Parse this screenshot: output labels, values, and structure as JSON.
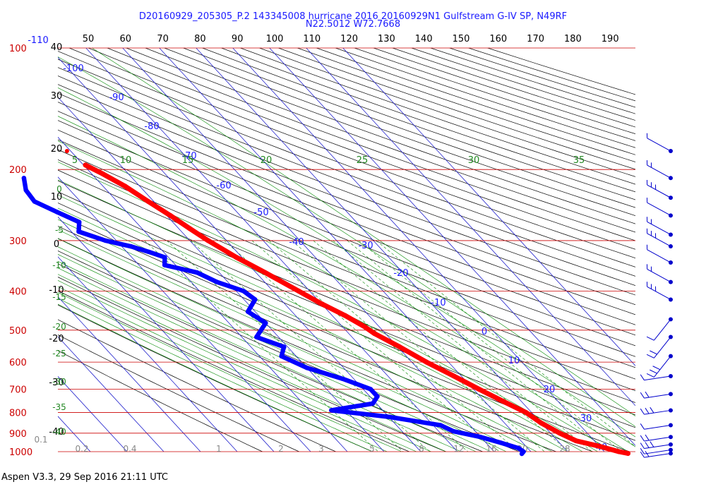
{
  "header": {
    "title_line1": "D20160929_205305_P.2 143345008 hurricane 2016 20160929N1 Gulfstream G-IV SP, N49RF",
    "title_line2": "N22.5012 W72.7668"
  },
  "footer": {
    "text": "Aspen V3.3, 29 Sep 2016  21:11 UTC"
  },
  "colors": {
    "temperature": "#ff0000",
    "dewpoint": "#0000ff",
    "isobar": "#cc0000",
    "isotherm": "#2222cc",
    "dry_adiabat": "#000000",
    "mixing_ratio": "#008800",
    "moist_adiabat": "#008800",
    "text_blue": "#1a1aff",
    "text_green": "#228822"
  },
  "chart_data": {
    "type": "skew-t",
    "title": "D20160929_205305_P.2 143345008 hurricane 2016 20160929N1 Gulfstream G-IV SP, N49RF",
    "subtitle": "N22.5012 W72.7668",
    "pressure_labels": [
      "100",
      "200",
      "300",
      "400",
      "500",
      "600",
      "700",
      "800",
      "900",
      "1000"
    ],
    "pressure_range_hpa": [
      100,
      1000
    ],
    "pressure_scale": "log",
    "top_theta_labels": [
      "40",
      "50",
      "60",
      "70",
      "80",
      "90",
      "100",
      "110",
      "120",
      "130",
      "140",
      "150",
      "160",
      "170",
      "180",
      "190"
    ],
    "left_theta_labels": [
      "30",
      "20",
      "10",
      "0",
      "-10",
      "-20",
      "-30",
      "-40"
    ],
    "isotherm_labels": [
      "-110",
      "-100",
      "-90",
      "-80",
      "-70",
      "-60",
      "-50",
      "-40",
      "-30",
      "-20",
      "-10",
      "0",
      "10",
      "20",
      "30",
      "40"
    ],
    "moist_adiabat_labels": [
      "5",
      "10",
      "15",
      "20",
      "25",
      "30",
      "35"
    ],
    "left_moist_labels": [
      "0",
      "-5",
      "-10",
      "-15",
      "-20",
      "-25",
      "-30",
      "-35",
      "-40"
    ],
    "mixing_ratio_labels": [
      "0.1",
      "0.2",
      "0.4",
      "1",
      "2",
      "3",
      "5",
      "8",
      "12",
      "16",
      "20",
      "28"
    ],
    "temperature_profile": [
      {
        "p": 195,
        "t": -49.5
      },
      {
        "p": 205,
        "t": -47
      },
      {
        "p": 220,
        "t": -44
      },
      {
        "p": 240,
        "t": -41.5
      },
      {
        "p": 260,
        "t": -39
      },
      {
        "p": 280,
        "t": -37
      },
      {
        "p": 300,
        "t": -35
      },
      {
        "p": 330,
        "t": -31.5
      },
      {
        "p": 360,
        "t": -27.5
      },
      {
        "p": 400,
        "t": -23
      },
      {
        "p": 430,
        "t": -20
      },
      {
        "p": 460,
        "t": -16.5
      },
      {
        "p": 490,
        "t": -14
      },
      {
        "p": 510,
        "t": -13
      },
      {
        "p": 550,
        "t": -9.5
      },
      {
        "p": 600,
        "t": -6
      },
      {
        "p": 650,
        "t": -2
      },
      {
        "p": 700,
        "t": 1.5
      },
      {
        "p": 750,
        "t": 5
      },
      {
        "p": 800,
        "t": 8.5
      },
      {
        "p": 850,
        "t": 10
      },
      {
        "p": 900,
        "t": 12.5
      },
      {
        "p": 940,
        "t": 15
      },
      {
        "p": 970,
        "t": 20
      },
      {
        "p": 1000,
        "t": 24
      },
      {
        "p": 1010,
        "t": 26
      }
    ],
    "dewpoint_profile": [
      {
        "p": 210,
        "td": -69.5
      },
      {
        "p": 225,
        "td": -72
      },
      {
        "p": 240,
        "td": -72.5
      },
      {
        "p": 255,
        "td": -69
      },
      {
        "p": 270,
        "td": -65.5
      },
      {
        "p": 285,
        "td": -68
      },
      {
        "p": 300,
        "td": -63
      },
      {
        "p": 310,
        "td": -57.5
      },
      {
        "p": 320,
        "td": -54
      },
      {
        "p": 330,
        "td": -51
      },
      {
        "p": 345,
        "td": -53
      },
      {
        "p": 360,
        "td": -46
      },
      {
        "p": 380,
        "td": -43
      },
      {
        "p": 400,
        "td": -38
      },
      {
        "p": 420,
        "td": -37
      },
      {
        "p": 450,
        "td": -42
      },
      {
        "p": 480,
        "td": -40
      },
      {
        "p": 520,
        "td": -46
      },
      {
        "p": 550,
        "td": -41
      },
      {
        "p": 580,
        "td": -44
      },
      {
        "p": 620,
        "td": -40
      },
      {
        "p": 660,
        "td": -33
      },
      {
        "p": 700,
        "td": -28
      },
      {
        "p": 730,
        "td": -28
      },
      {
        "p": 760,
        "td": -31
      },
      {
        "p": 790,
        "td": -44
      },
      {
        "p": 820,
        "td": -30
      },
      {
        "p": 860,
        "td": -18
      },
      {
        "p": 890,
        "td": -16
      },
      {
        "p": 920,
        "td": -10
      },
      {
        "p": 950,
        "td": -6
      },
      {
        "p": 980,
        "td": -2.5
      },
      {
        "p": 1000,
        "td": -2
      },
      {
        "p": 1012,
        "td": -3
      }
    ],
    "isolated_temperature_point": {
      "p": 180,
      "t": -51
    },
    "wind_barbs_pressure_hpa": [
      180,
      210,
      235,
      260,
      290,
      310,
      340,
      380,
      420,
      470,
      520,
      580,
      650,
      720,
      790,
      860,
      920,
      960,
      990,
      1010
    ],
    "grid": true
  }
}
